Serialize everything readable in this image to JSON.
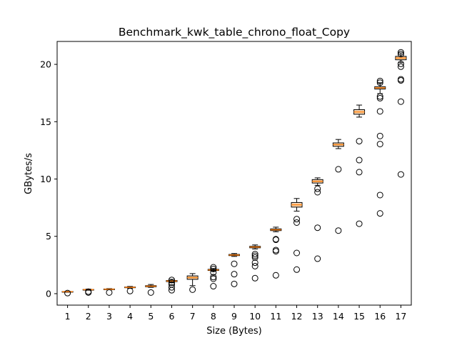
{
  "chart_data": {
    "type": "box",
    "title": "Benchmark_kwk_table_chrono_float_Copy",
    "xlabel": "Size (Bytes)",
    "ylabel": "GBytes/s",
    "ylim": [
      -1,
      22
    ],
    "yticks": [
      0,
      5,
      10,
      15,
      20
    ],
    "grid": false,
    "legend": "none",
    "colors": {
      "box": "#000000",
      "median": "#ff7f0e",
      "box_fill": "#fdd9b5",
      "flier": "#000000"
    },
    "categories": [
      "1",
      "2",
      "3",
      "4",
      "5",
      "6",
      "7",
      "8",
      "9",
      "10",
      "11",
      "12",
      "13",
      "14",
      "15",
      "16",
      "17"
    ],
    "boxes": [
      {
        "label": "1",
        "whislo": 0.13,
        "q1": 0.15,
        "med": 0.17,
        "q3": 0.19,
        "whishi": 0.21,
        "fliers": [
          0.05
        ]
      },
      {
        "label": "2",
        "whislo": 0.3,
        "q1": 0.33,
        "med": 0.35,
        "q3": 0.37,
        "whishi": 0.4,
        "fliers": [
          0.1,
          0.18
        ]
      },
      {
        "label": "3",
        "whislo": 0.34,
        "q1": 0.37,
        "med": 0.39,
        "q3": 0.41,
        "whishi": 0.44,
        "fliers": [
          0.1
        ]
      },
      {
        "label": "4",
        "whislo": 0.47,
        "q1": 0.52,
        "med": 0.55,
        "q3": 0.58,
        "whishi": 0.63,
        "fliers": [
          0.23
        ]
      },
      {
        "label": "5",
        "whislo": 0.55,
        "q1": 0.6,
        "med": 0.65,
        "q3": 0.7,
        "whishi": 0.8,
        "fliers": [
          0.1
        ]
      },
      {
        "label": "6",
        "whislo": 0.95,
        "q1": 1.05,
        "med": 1.1,
        "q3": 1.15,
        "whishi": 1.25,
        "fliers": [
          0.3,
          0.55,
          0.8,
          0.95,
          1.2
        ]
      },
      {
        "label": "7",
        "whislo": 0.7,
        "q1": 1.25,
        "med": 1.4,
        "q3": 1.55,
        "whishi": 1.75,
        "fliers": [
          0.35
        ]
      },
      {
        "label": "8",
        "whislo": 1.95,
        "q1": 2.02,
        "med": 2.07,
        "q3": 2.12,
        "whishi": 2.2,
        "fliers": [
          0.65,
          1.3,
          1.45,
          1.85,
          2.15,
          2.3
        ]
      },
      {
        "label": "9",
        "whislo": 3.25,
        "q1": 3.32,
        "med": 3.37,
        "q3": 3.42,
        "whishi": 3.5,
        "fliers": [
          0.85,
          1.7,
          2.6
        ]
      },
      {
        "label": "10",
        "whislo": 3.9,
        "q1": 4.0,
        "med": 4.07,
        "q3": 4.13,
        "whishi": 4.25,
        "fliers": [
          1.35,
          2.4,
          2.7,
          3.15,
          3.3,
          3.45
        ]
      },
      {
        "label": "11",
        "whislo": 5.4,
        "q1": 5.5,
        "med": 5.57,
        "q3": 5.65,
        "whishi": 5.8,
        "fliers": [
          1.6,
          3.7,
          3.8,
          4.7,
          4.75
        ]
      },
      {
        "label": "12",
        "whislo": 7.2,
        "q1": 7.55,
        "med": 7.75,
        "q3": 7.95,
        "whishi": 8.3,
        "fliers": [
          2.1,
          3.55,
          6.2,
          6.5
        ]
      },
      {
        "label": "13",
        "whislo": 9.45,
        "q1": 9.65,
        "med": 9.8,
        "q3": 9.95,
        "whishi": 10.1,
        "fliers": [
          3.05,
          5.75,
          8.85,
          9.15
        ]
      },
      {
        "label": "14",
        "whislo": 12.65,
        "q1": 12.85,
        "med": 13.0,
        "q3": 13.15,
        "whishi": 13.45,
        "fliers": [
          5.5,
          10.85
        ]
      },
      {
        "label": "15",
        "whislo": 15.4,
        "q1": 15.65,
        "med": 15.85,
        "q3": 16.05,
        "whishi": 16.45,
        "fliers": [
          6.1,
          10.6,
          11.65,
          13.3
        ]
      },
      {
        "label": "16",
        "whislo": 17.45,
        "q1": 17.85,
        "med": 17.95,
        "q3": 18.05,
        "whishi": 18.4,
        "fliers": [
          7.0,
          8.6,
          13.05,
          13.75,
          15.9,
          17.05,
          17.2,
          18.4,
          18.55
        ]
      },
      {
        "label": "17",
        "whislo": 20.15,
        "q1": 20.4,
        "med": 20.55,
        "q3": 20.7,
        "whishi": 21.0,
        "fliers": [
          10.4,
          16.75,
          18.6,
          18.7,
          19.8,
          20.05,
          20.9,
          21.05
        ]
      }
    ]
  }
}
